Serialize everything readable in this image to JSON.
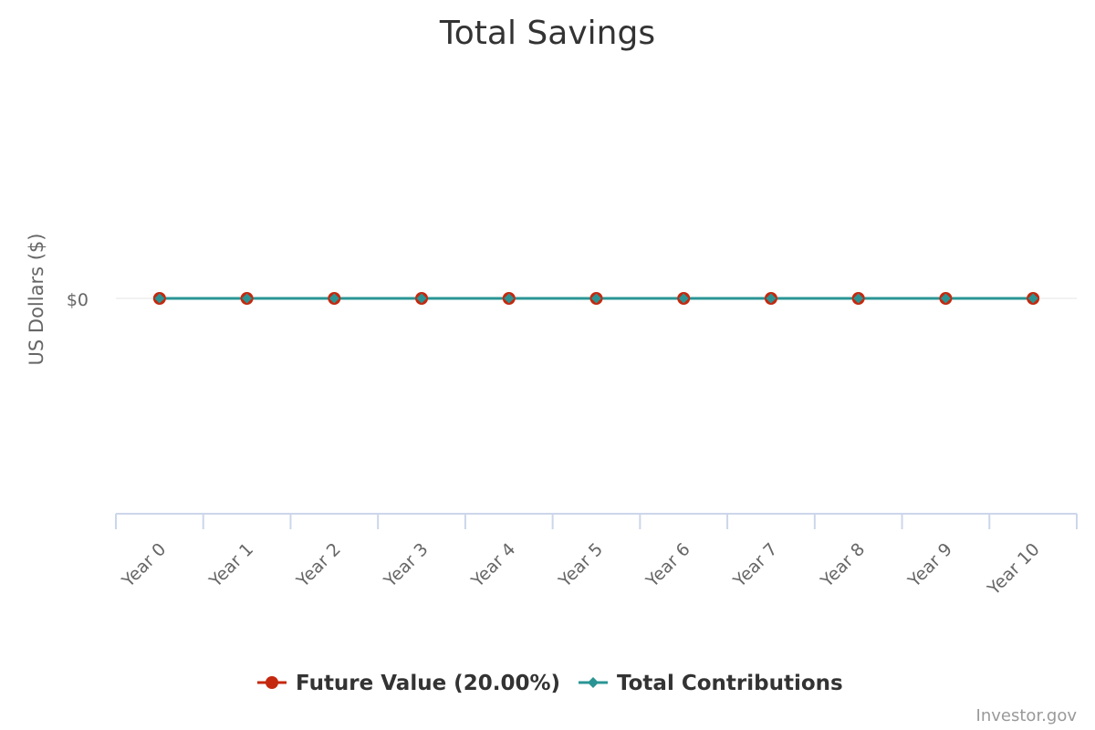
{
  "chart_data": {
    "type": "line",
    "title": "Total Savings",
    "xlabel": "",
    "ylabel": "US Dollars ($)",
    "categories": [
      "Year 0",
      "Year 1",
      "Year 2",
      "Year 3",
      "Year 4",
      "Year 5",
      "Year 6",
      "Year 7",
      "Year 8",
      "Year 9",
      "Year 10"
    ],
    "y_ticks": [
      {
        "value": 0,
        "label": "$0"
      }
    ],
    "ylim": [
      -1,
      1
    ],
    "grid": true,
    "legend_position": "bottom",
    "series": [
      {
        "name": "Future Value (20.00%)",
        "color": "#c4290f",
        "marker": "circle",
        "values": [
          0,
          0,
          0,
          0,
          0,
          0,
          0,
          0,
          0,
          0,
          0
        ]
      },
      {
        "name": "Total Contributions",
        "color": "#2a9494",
        "marker": "diamond",
        "values": [
          0,
          0,
          0,
          0,
          0,
          0,
          0,
          0,
          0,
          0,
          0
        ]
      }
    ]
  },
  "credits": "Investor.gov"
}
